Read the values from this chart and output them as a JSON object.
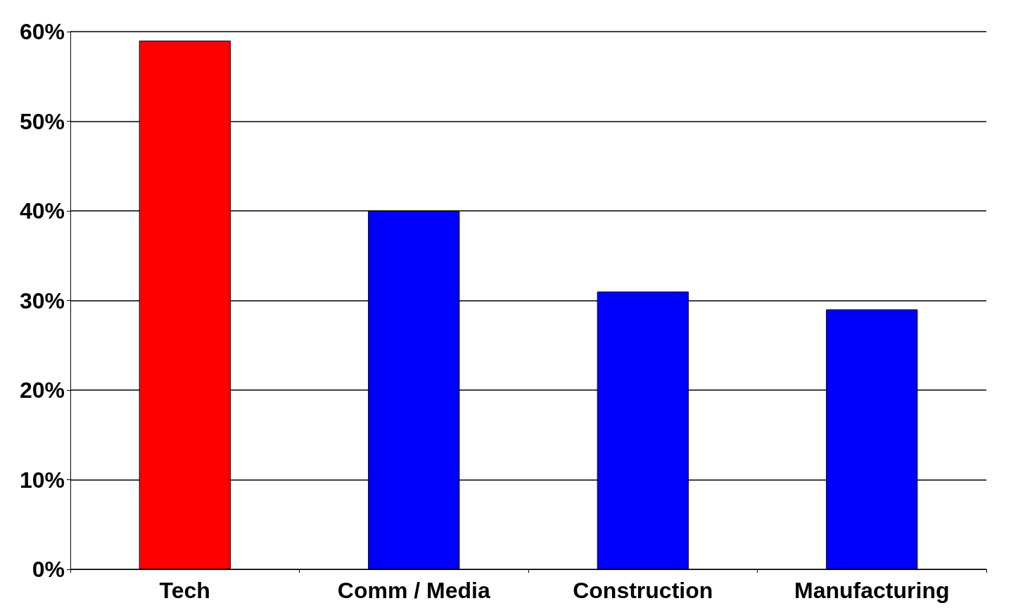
{
  "chart_data": {
    "type": "bar",
    "categories": [
      "Tech",
      "Comm / Media",
      "Construction",
      "Manufacturing"
    ],
    "values": [
      59,
      40,
      31,
      29
    ],
    "colors": [
      "#ff0000",
      "#0000ff",
      "#0000ff",
      "#0000ff"
    ],
    "ylim": [
      0,
      60
    ],
    "yticks": [
      {
        "value": 0,
        "label": "0%"
      },
      {
        "value": 10,
        "label": "10%"
      },
      {
        "value": 20,
        "label": "20%"
      },
      {
        "value": 30,
        "label": "30%"
      },
      {
        "value": 40,
        "label": "40%"
      },
      {
        "value": 50,
        "label": "50%"
      },
      {
        "value": 60,
        "label": "60%"
      }
    ],
    "grid": "y"
  }
}
